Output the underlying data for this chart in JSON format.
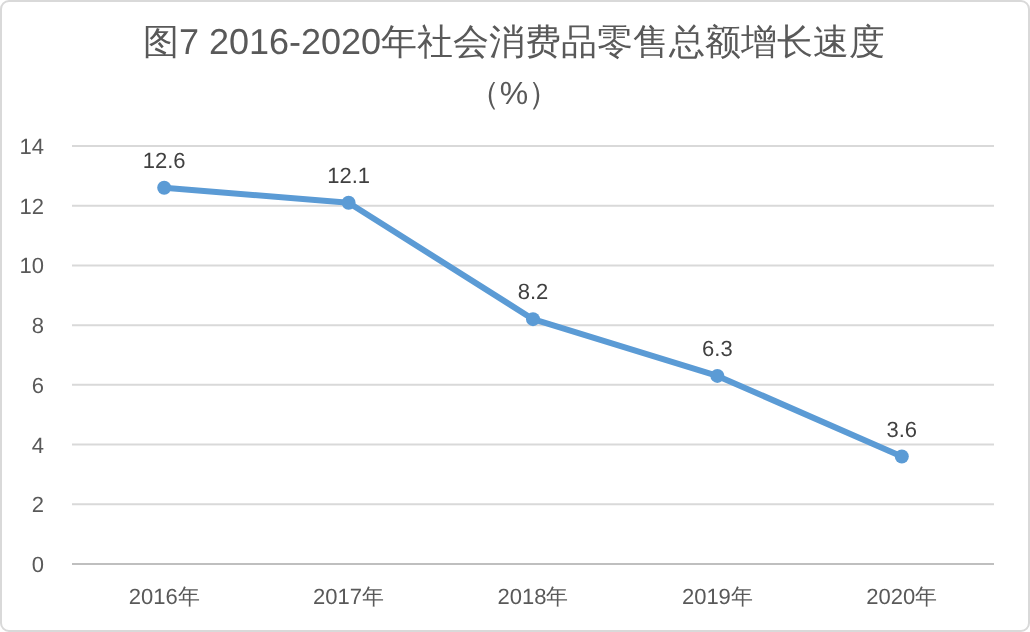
{
  "chart_data": {
    "type": "line",
    "title": "图7  2016-2020年社会消费品零售总额增长速度",
    "subtitle": "（%）",
    "categories": [
      "2016年",
      "2017年",
      "2018年",
      "2019年",
      "2020年"
    ],
    "series": [
      {
        "color": "#5b9bd5",
        "values": [
          12.6,
          12.1,
          8.2,
          6.3,
          3.6
        ]
      }
    ],
    "ylim": [
      0,
      14
    ],
    "yticks": [
      0,
      2,
      4,
      6,
      8,
      10,
      12,
      14
    ],
    "grid": "y",
    "data_labels": true,
    "marker": "circle",
    "line_style": "solid"
  }
}
